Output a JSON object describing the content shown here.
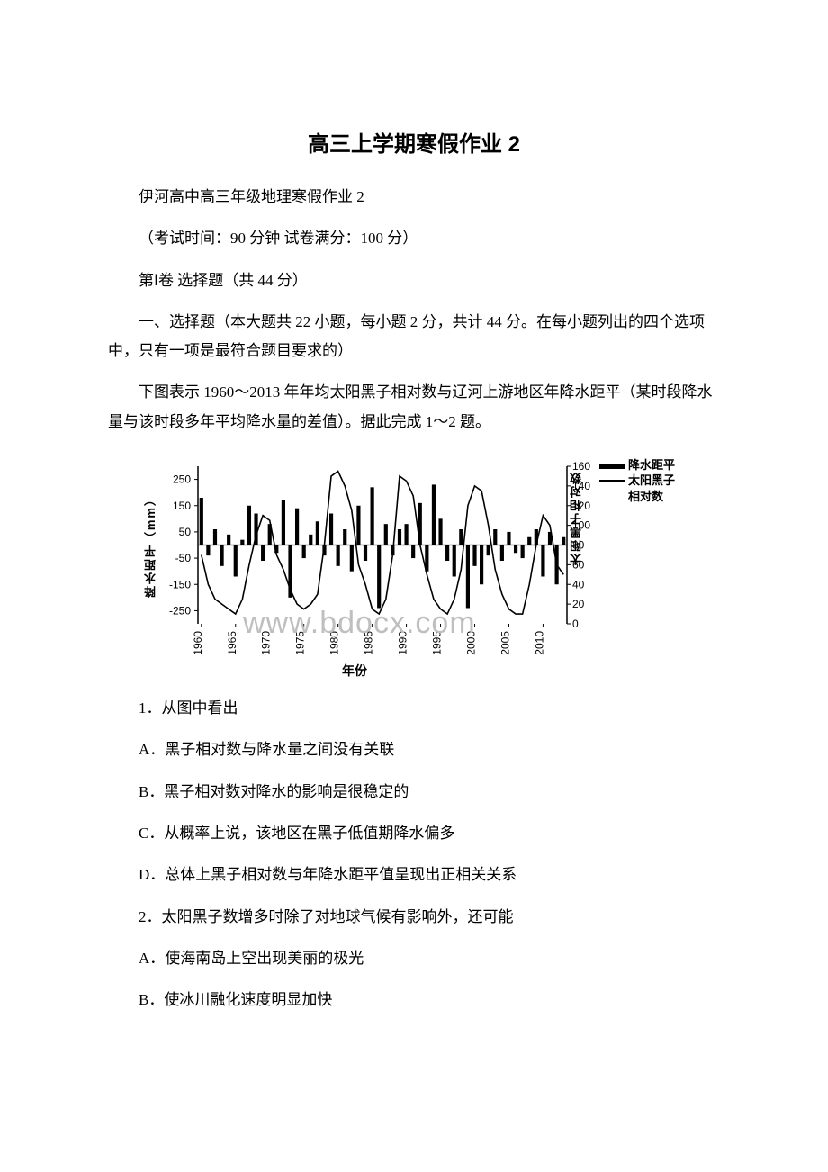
{
  "title": "高三上学期寒假作业 2",
  "subtitle": "伊河高中高三年级地理寒假作业 2",
  "exam_info": "（考试时间：90 分钟 试卷满分：100 分）",
  "section_header": "第Ⅰ卷 选择题（共 44 分）",
  "instructions": "一、选择题（本大题共 22 小题，每小题 2 分，共计 44 分。在每小题列出的四个选项中，只有一项是最符合题目要求的）",
  "figure_intro": "下图表示 1960～2013 年年均太阳黑子相对数与辽河上游地区年降水距平（某时段降水量与该时段多年平均降水量的差值）。据此完成 1～2 题。",
  "q1": {
    "stem": "1．从图中看出",
    "a": "A．黑子相对数与降水量之间没有关联",
    "b": "B．黑子相对数对降水的影响是很稳定的",
    "c": "C．从概率上说，该地区在黑子低值期降水偏多",
    "d": "D．总体上黑子相对数与年降水距平值呈现出正相关关系"
  },
  "q2": {
    "stem": "2．太阳黑子数增多时除了对地球气候有影响外，还可能",
    "a": "A．使海南岛上空出现美丽的极光",
    "b": "B．使冰川融化速度明显加快"
  },
  "chart": {
    "type": "dual-axis-bar-line",
    "watermark": "www.bdocx.com",
    "legend": {
      "series1": "降水距平",
      "series2_line1": "太阳黑子",
      "series2_line2": "相对数"
    },
    "left_axis": {
      "label": "降水距平（mm）",
      "ticks": [
        "250",
        "150",
        "50",
        "-50",
        "-150",
        "-250"
      ],
      "min": -300,
      "max": 300
    },
    "right_axis": {
      "label": "太阳黑子相对数",
      "ticks": [
        "160",
        "140",
        "120",
        "100",
        "80",
        "60",
        "40",
        "20",
        "0"
      ],
      "min": 0,
      "max": 160
    },
    "x_axis": {
      "label": "年份",
      "ticks": [
        "1960",
        "1965",
        "1970",
        "1975",
        "1980",
        "1985",
        "1990",
        "1995",
        "2000",
        "2005",
        "2010"
      ]
    },
    "colors": {
      "bar": "#000000",
      "line": "#000000",
      "axis": "#000000",
      "background": "#ffffff",
      "watermark": "#bfbfbf"
    },
    "bar_values": [
      180,
      -40,
      60,
      -80,
      40,
      -120,
      20,
      150,
      120,
      -60,
      80,
      -30,
      170,
      -200,
      140,
      -50,
      40,
      90,
      -40,
      120,
      -80,
      60,
      -100,
      150,
      -60,
      220,
      -240,
      80,
      -40,
      60,
      80,
      -50,
      160,
      -100,
      230,
      100,
      -60,
      -120,
      60,
      -240,
      -80,
      -150,
      -40,
      60,
      -60,
      50,
      -30,
      -50,
      30,
      60,
      -120,
      50,
      -150,
      30
    ],
    "line_values": [
      70,
      40,
      25,
      20,
      15,
      10,
      25,
      60,
      90,
      110,
      105,
      70,
      55,
      35,
      20,
      15,
      20,
      30,
      80,
      150,
      155,
      140,
      115,
      60,
      40,
      15,
      10,
      25,
      70,
      150,
      145,
      130,
      80,
      50,
      25,
      15,
      10,
      25,
      55,
      120,
      140,
      135,
      100,
      55,
      30,
      15,
      10,
      10,
      40,
      80,
      110,
      100,
      60,
      50
    ]
  }
}
